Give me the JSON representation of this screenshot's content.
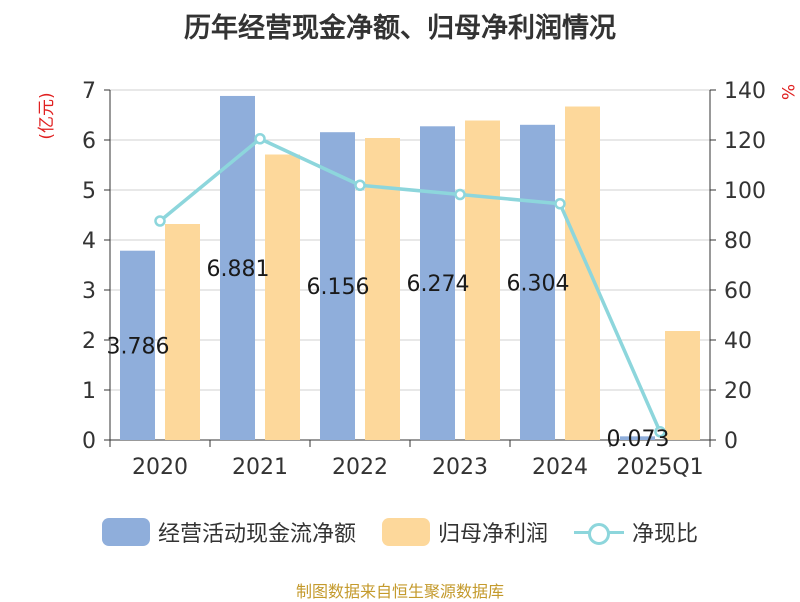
{
  "title": "历年经营现金净额、归母净利润情况",
  "source": "制图数据来自恒生聚源数据库",
  "chart_data": {
    "type": "bar",
    "categories": [
      "2020",
      "2021",
      "2022",
      "2023",
      "2024",
      "2025Q1"
    ],
    "series": [
      {
        "name": "经营活动现金流净额",
        "axis": "left",
        "color": "#8faedb",
        "values": [
          3.786,
          6.881,
          6.156,
          6.274,
          6.304,
          0.073
        ],
        "labels": [
          "3.786",
          "6.881",
          "6.156",
          "6.274",
          "6.304",
          "0.073"
        ]
      },
      {
        "name": "归母净利润",
        "axis": "left",
        "color": "#fdd89b",
        "values": [
          4.32,
          5.71,
          6.04,
          6.39,
          6.67,
          2.18
        ]
      },
      {
        "name": "净现比",
        "axis": "right",
        "type": "line",
        "color": "#8dd6dc",
        "values": [
          87.6,
          120.5,
          101.9,
          98.2,
          94.5,
          3.3
        ]
      }
    ],
    "left_axis": {
      "label": "(亿元)",
      "ylim": [
        0,
        7
      ],
      "ticks": [
        "0",
        "1",
        "2",
        "3",
        "4",
        "5",
        "6",
        "7"
      ]
    },
    "right_axis": {
      "label": "%",
      "ylim": [
        0,
        140
      ],
      "ticks": [
        "0",
        "20",
        "40",
        "60",
        "80",
        "100",
        "120",
        "140"
      ]
    },
    "grid": true,
    "legend_position": "bottom",
    "axis_label_color": "#e02020"
  }
}
